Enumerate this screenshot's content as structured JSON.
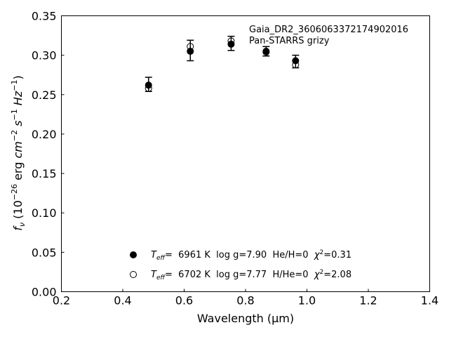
{
  "chart_data": {
    "type": "scatter",
    "xlabel": "Wavelength (μm)",
    "ylabel_parts": [
      "f",
      "ν",
      " (10",
      "−26",
      " erg ",
      "cm",
      "−2",
      " ",
      "s",
      "−1",
      " ",
      "Hz",
      "−1",
      ")"
    ],
    "xlim": [
      0.2,
      1.4
    ],
    "ylim": [
      0.0,
      0.35
    ],
    "xticks": [
      0.2,
      0.4,
      0.6,
      0.8,
      1.0,
      1.2,
      1.4
    ],
    "xtick_labels": [
      "0.2",
      "0.4",
      "0.6",
      "0.8",
      "1.0",
      "1.2",
      "1.4"
    ],
    "yticks": [
      0.0,
      0.05,
      0.1,
      0.15,
      0.2,
      0.25,
      0.3,
      0.35
    ],
    "ytick_labels": [
      "0.00",
      "0.05",
      "0.10",
      "0.15",
      "0.20",
      "0.25",
      "0.30",
      "0.35"
    ],
    "annotation": [
      "Gaia_DR2_3606063372174902016",
      "Pan-STARRS grizy"
    ],
    "grid": false,
    "legend_position": "lower-center",
    "observed": {
      "x": [
        0.484,
        0.62,
        0.753,
        0.867,
        0.963
      ],
      "y": [
        0.263,
        0.306,
        0.315,
        0.305,
        0.292
      ],
      "yerr": [
        0.009,
        0.013,
        0.009,
        0.006,
        0.008
      ]
    },
    "series": [
      {
        "marker": "filled",
        "x": [
          0.484,
          0.62,
          0.753,
          0.867,
          0.963
        ],
        "y": [
          0.262,
          0.305,
          0.314,
          0.305,
          0.293
        ],
        "legend_parts": [
          "T",
          "eff",
          "=  6961 K  log g=7.90  He/H=0  ",
          "χ",
          "2",
          "=0.31"
        ]
      },
      {
        "marker": "open",
        "x": [
          0.484,
          0.62,
          0.753,
          0.867,
          0.963
        ],
        "y": [
          0.258,
          0.311,
          0.318,
          0.304,
          0.288
        ],
        "legend_parts": [
          "T",
          "eff",
          "=  6702 K  log g=7.77  H/He=0  ",
          "χ",
          "2",
          "=2.08"
        ]
      }
    ]
  }
}
